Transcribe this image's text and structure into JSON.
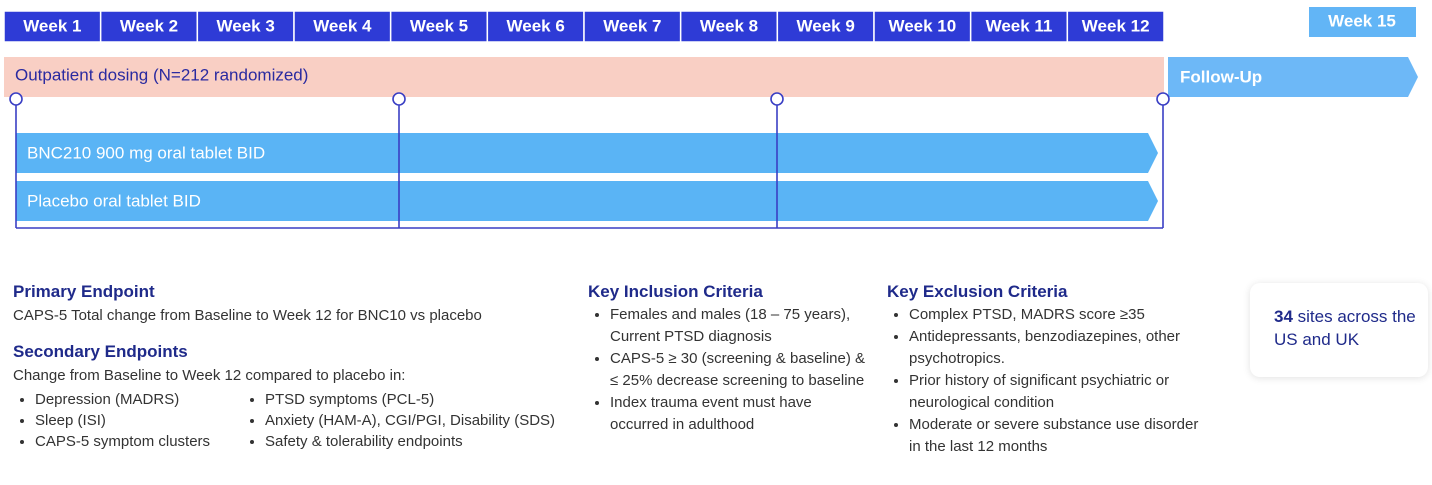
{
  "weeks": [
    "Week 1",
    "Week 2",
    "Week 3",
    "Week 4",
    "Week 5",
    "Week 6",
    "Week 7",
    "Week 8",
    "Week 9",
    "Week 10",
    "Week 11",
    "Week 12"
  ],
  "week15": "Week 15",
  "dosing": "Outpatient dosing (N=212 randomized)",
  "follow_up": "Follow-Up",
  "arms": [
    "BNC210 900 mg oral tablet BID",
    "Placebo oral tablet BID"
  ],
  "primary": {
    "title": "Primary Endpoint",
    "text": "CAPS-5 Total change from Baseline to  Week 12 for BNC10 vs placebo"
  },
  "secondary": {
    "title": "Secondary Endpoints",
    "intro": "Change from Baseline to Week 12 compared to placebo in:",
    "col1": [
      "Depression (MADRS)",
      "Sleep (ISI)",
      "CAPS-5 symptom clusters"
    ],
    "col2": [
      "PTSD symptoms (PCL-5)",
      "Anxiety (HAM-A), CGI/PGI, Disability (SDS)",
      "Safety & tolerability endpoints"
    ]
  },
  "inclusion": {
    "title": "Key Inclusion Criteria",
    "items": [
      "Females and males (18 – 75 years), Current PTSD diagnosis",
      "CAPS-5 ≥ 30 (screening & baseline) & ≤ 25% decrease screening to baseline",
      "Index trauma event must have occurred in adulthood"
    ]
  },
  "exclusion": {
    "title": "Key Exclusion Criteria",
    "items": [
      "Complex PTSD, MADRS score ≥35",
      "Antidepressants, benzodiazepines, other psychotropics.",
      "Prior history of significant psychiatric or neurological condition",
      "Moderate or severe substance use disorder in the last 12 months"
    ]
  },
  "sites": {
    "count": "34",
    "text": "sites across the US and UK"
  }
}
